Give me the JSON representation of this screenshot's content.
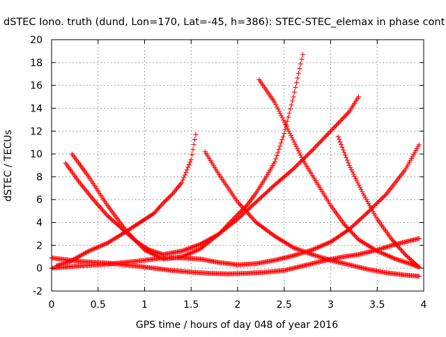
{
  "chart_data": {
    "type": "scatter",
    "title": "dSTEC Iono. truth (dund, Lon=170, Lat=-45, h=386): STEC-STEC_elemax in phase cont",
    "xlabel": "GPS time / hours of day 048 of year 2016",
    "ylabel": "dSTEC  / TECUs",
    "xlim": [
      0,
      4
    ],
    "ylim": [
      -2,
      20
    ],
    "xticks": [
      0,
      0.5,
      1,
      1.5,
      2,
      2.5,
      3,
      3.5,
      4
    ],
    "xtick_labels": [
      "0",
      "0.5",
      "1",
      "1.5",
      "2",
      "2.5",
      "3",
      "3.5",
      "4"
    ],
    "yticks": [
      -2,
      0,
      2,
      4,
      6,
      8,
      10,
      12,
      14,
      16,
      18,
      20
    ],
    "ytick_labels": [
      "-2",
      "0",
      "2",
      "4",
      "6",
      "8",
      "10",
      "12",
      "14",
      "16",
      "18",
      "20"
    ],
    "grid": true,
    "marker": "+",
    "color": "#ff0000",
    "series": [
      {
        "x": [
          0,
          0.3,
          0.6,
          0.9,
          1.1,
          1.3,
          1.5,
          1.7,
          1.9,
          2.1,
          2.3,
          2.5,
          2.7,
          2.9,
          3.1,
          3.3,
          3.5,
          3.7,
          3.95
        ],
        "y": [
          0.9,
          0.6,
          0.45,
          0.2,
          0.0,
          -0.2,
          -0.35,
          -0.45,
          -0.5,
          -0.45,
          -0.35,
          -0.2,
          0.2,
          0.6,
          0.95,
          1.2,
          1.6,
          2.1,
          2.6
        ]
      },
      {
        "x": [
          0,
          0.3,
          0.6,
          0.9,
          1.2,
          1.4,
          1.6,
          1.8,
          2.0,
          2.2,
          2.4,
          2.6,
          2.8,
          3.0,
          3.2,
          3.4,
          3.6,
          3.8,
          3.95
        ],
        "y": [
          0,
          0.2,
          0.35,
          0.6,
          0.9,
          0.9,
          0.8,
          0.5,
          0.3,
          0.4,
          0.7,
          1.1,
          1.6,
          2.3,
          3.4,
          4.9,
          6.5,
          8.6,
          10.8
        ]
      },
      {
        "x": [
          0.05,
          0.2,
          0.4,
          0.6,
          0.8,
          0.95,
          1.1,
          1.2,
          1.3,
          1.4,
          1.5,
          1.55
        ],
        "y": [
          0.2,
          0.6,
          1.5,
          2.2,
          3.2,
          4.0,
          4.8,
          5.7,
          6.5,
          7.5,
          9.5,
          11.7
        ]
      },
      {
        "x": [
          0.15,
          0.3,
          0.45,
          0.6,
          0.75,
          0.9,
          1.05,
          1.2,
          1.4,
          1.6,
          1.8,
          2.0,
          2.2,
          2.4,
          2.6,
          2.8,
          3.0,
          3.2,
          3.3
        ],
        "y": [
          9.2,
          7.5,
          6.0,
          4.6,
          3.5,
          2.4,
          1.6,
          1.2,
          1.5,
          2.1,
          3.0,
          4.3,
          5.8,
          7.3,
          8.7,
          10.3,
          12.0,
          13.7,
          15.0
        ]
      },
      {
        "x": [
          0.22,
          0.4,
          0.6,
          0.8,
          1.0,
          1.2,
          1.4,
          1.6,
          1.8,
          2.0,
          2.1,
          2.2,
          2.3,
          2.4,
          2.5,
          2.6,
          2.7
        ],
        "y": [
          10.0,
          8.0,
          5.5,
          3.3,
          1.6,
          0.8,
          1.0,
          1.7,
          3.0,
          4.7,
          5.5,
          6.6,
          7.9,
          9.3,
          11.8,
          15.0,
          18.7
        ]
      },
      {
        "x": [
          1.65,
          1.8,
          2.0,
          2.2,
          2.4,
          2.6,
          2.8,
          3.0,
          3.2,
          3.4,
          3.6,
          3.8,
          3.95
        ],
        "y": [
          10.2,
          8.2,
          5.8,
          4.0,
          2.8,
          1.8,
          1.2,
          0.7,
          0.3,
          -0.1,
          -0.4,
          -0.6,
          -0.7
        ]
      },
      {
        "x": [
          2.23,
          2.4,
          2.55,
          2.7,
          2.85,
          3.0,
          3.15,
          3.3,
          3.5,
          3.7,
          3.85,
          3.95
        ],
        "y": [
          16.5,
          14.5,
          12.0,
          9.5,
          7.5,
          5.5,
          3.8,
          2.5,
          1.5,
          0.8,
          0.4,
          0.1
        ]
      },
      {
        "x": [
          3.08,
          3.2,
          3.35,
          3.5,
          3.65,
          3.8,
          3.95
        ],
        "y": [
          11.5,
          9.0,
          6.5,
          4.3,
          2.6,
          1.2,
          0.1
        ]
      }
    ]
  }
}
